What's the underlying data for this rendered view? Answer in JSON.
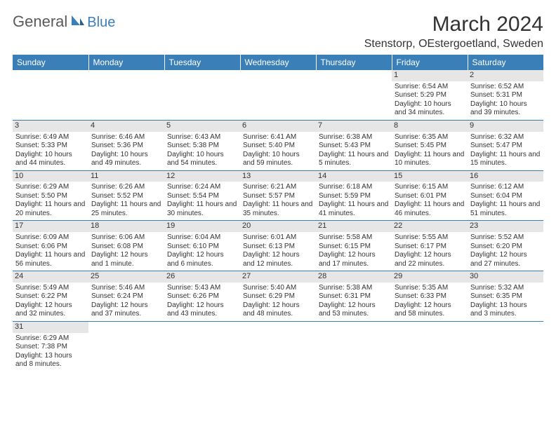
{
  "logo": {
    "general": "General",
    "blue": "Blue"
  },
  "title": "March 2024",
  "location": "Stenstorp, OEstergoetland, Sweden",
  "colors": {
    "header_bg": "#3b7fb8",
    "header_text": "#ffffff",
    "daynum_bg": "#e6e6e6",
    "row_border": "#3b7fb8",
    "text": "#333333",
    "logo_gray": "#5a5a5a",
    "logo_blue": "#3b7fb8"
  },
  "calendar": {
    "weekdays": [
      "Sunday",
      "Monday",
      "Tuesday",
      "Wednesday",
      "Thursday",
      "Friday",
      "Saturday"
    ],
    "firstDayIndex": 5,
    "daysInMonth": 31,
    "days": [
      {
        "n": 1,
        "sunrise": "6:54 AM",
        "sunset": "5:29 PM",
        "daylight": "10 hours and 34 minutes."
      },
      {
        "n": 2,
        "sunrise": "6:52 AM",
        "sunset": "5:31 PM",
        "daylight": "10 hours and 39 minutes."
      },
      {
        "n": 3,
        "sunrise": "6:49 AM",
        "sunset": "5:33 PM",
        "daylight": "10 hours and 44 minutes."
      },
      {
        "n": 4,
        "sunrise": "6:46 AM",
        "sunset": "5:36 PM",
        "daylight": "10 hours and 49 minutes."
      },
      {
        "n": 5,
        "sunrise": "6:43 AM",
        "sunset": "5:38 PM",
        "daylight": "10 hours and 54 minutes."
      },
      {
        "n": 6,
        "sunrise": "6:41 AM",
        "sunset": "5:40 PM",
        "daylight": "10 hours and 59 minutes."
      },
      {
        "n": 7,
        "sunrise": "6:38 AM",
        "sunset": "5:43 PM",
        "daylight": "11 hours and 5 minutes."
      },
      {
        "n": 8,
        "sunrise": "6:35 AM",
        "sunset": "5:45 PM",
        "daylight": "11 hours and 10 minutes."
      },
      {
        "n": 9,
        "sunrise": "6:32 AM",
        "sunset": "5:47 PM",
        "daylight": "11 hours and 15 minutes."
      },
      {
        "n": 10,
        "sunrise": "6:29 AM",
        "sunset": "5:50 PM",
        "daylight": "11 hours and 20 minutes."
      },
      {
        "n": 11,
        "sunrise": "6:26 AM",
        "sunset": "5:52 PM",
        "daylight": "11 hours and 25 minutes."
      },
      {
        "n": 12,
        "sunrise": "6:24 AM",
        "sunset": "5:54 PM",
        "daylight": "11 hours and 30 minutes."
      },
      {
        "n": 13,
        "sunrise": "6:21 AM",
        "sunset": "5:57 PM",
        "daylight": "11 hours and 35 minutes."
      },
      {
        "n": 14,
        "sunrise": "6:18 AM",
        "sunset": "5:59 PM",
        "daylight": "11 hours and 41 minutes."
      },
      {
        "n": 15,
        "sunrise": "6:15 AM",
        "sunset": "6:01 PM",
        "daylight": "11 hours and 46 minutes."
      },
      {
        "n": 16,
        "sunrise": "6:12 AM",
        "sunset": "6:04 PM",
        "daylight": "11 hours and 51 minutes."
      },
      {
        "n": 17,
        "sunrise": "6:09 AM",
        "sunset": "6:06 PM",
        "daylight": "11 hours and 56 minutes."
      },
      {
        "n": 18,
        "sunrise": "6:06 AM",
        "sunset": "6:08 PM",
        "daylight": "12 hours and 1 minute."
      },
      {
        "n": 19,
        "sunrise": "6:04 AM",
        "sunset": "6:10 PM",
        "daylight": "12 hours and 6 minutes."
      },
      {
        "n": 20,
        "sunrise": "6:01 AM",
        "sunset": "6:13 PM",
        "daylight": "12 hours and 12 minutes."
      },
      {
        "n": 21,
        "sunrise": "5:58 AM",
        "sunset": "6:15 PM",
        "daylight": "12 hours and 17 minutes."
      },
      {
        "n": 22,
        "sunrise": "5:55 AM",
        "sunset": "6:17 PM",
        "daylight": "12 hours and 22 minutes."
      },
      {
        "n": 23,
        "sunrise": "5:52 AM",
        "sunset": "6:20 PM",
        "daylight": "12 hours and 27 minutes."
      },
      {
        "n": 24,
        "sunrise": "5:49 AM",
        "sunset": "6:22 PM",
        "daylight": "12 hours and 32 minutes."
      },
      {
        "n": 25,
        "sunrise": "5:46 AM",
        "sunset": "6:24 PM",
        "daylight": "12 hours and 37 minutes."
      },
      {
        "n": 26,
        "sunrise": "5:43 AM",
        "sunset": "6:26 PM",
        "daylight": "12 hours and 43 minutes."
      },
      {
        "n": 27,
        "sunrise": "5:40 AM",
        "sunset": "6:29 PM",
        "daylight": "12 hours and 48 minutes."
      },
      {
        "n": 28,
        "sunrise": "5:38 AM",
        "sunset": "6:31 PM",
        "daylight": "12 hours and 53 minutes."
      },
      {
        "n": 29,
        "sunrise": "5:35 AM",
        "sunset": "6:33 PM",
        "daylight": "12 hours and 58 minutes."
      },
      {
        "n": 30,
        "sunrise": "5:32 AM",
        "sunset": "6:35 PM",
        "daylight": "13 hours and 3 minutes."
      },
      {
        "n": 31,
        "sunrise": "6:29 AM",
        "sunset": "7:38 PM",
        "daylight": "13 hours and 8 minutes."
      }
    ],
    "labels": {
      "sunrise": "Sunrise:",
      "sunset": "Sunset:",
      "daylight": "Daylight:"
    }
  }
}
